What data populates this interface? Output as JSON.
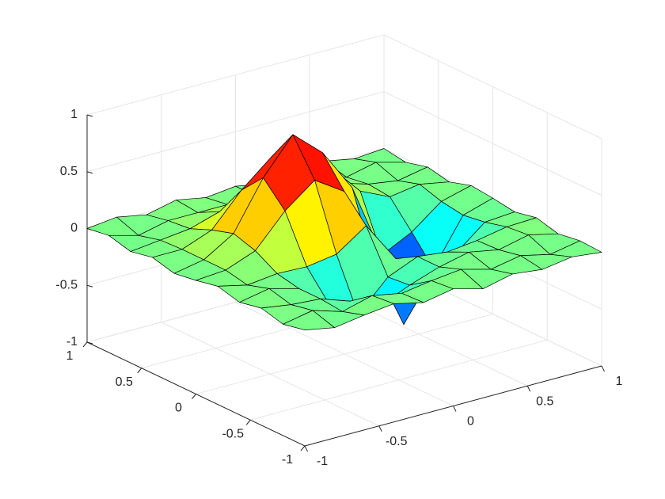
{
  "chart_data": {
    "type": "surface",
    "x": [
      -1,
      -0.8,
      -0.6,
      -0.4,
      -0.2,
      0,
      0.2,
      0.4,
      0.6,
      0.8,
      1
    ],
    "y": [
      -1,
      -0.8,
      -0.6,
      -0.4,
      -0.2,
      0,
      0.2,
      0.4,
      0.6,
      0.8,
      1
    ],
    "z": [
      [
        0.02,
        -0.03,
        0.01,
        0.04,
        -0.02,
        0.03,
        -0.04,
        0.02,
        -0.01,
        0.03,
        0.0
      ],
      [
        -0.02,
        0.03,
        -0.05,
        0.02,
        -0.03,
        0.01,
        0.04,
        -0.03,
        0.02,
        -0.04,
        0.01
      ],
      [
        0.03,
        -0.01,
        -0.03,
        -0.12,
        -0.23,
        -0.12,
        -0.03,
        0.03,
        -0.02,
        0.04,
        -0.02
      ],
      [
        -0.01,
        0.04,
        -0.03,
        -0.23,
        -0.4,
        -0.14,
        -0.03,
        -0.06,
        -0.03,
        0.02,
        0.03
      ],
      [
        0.04,
        -0.02,
        0.01,
        0.0,
        0.04,
        0.22,
        -0.14,
        -0.46,
        -0.24,
        -0.03,
        -0.01
      ],
      [
        0.0,
        0.02,
        0.12,
        0.4,
        0.6,
        0.43,
        -0.29,
        -0.88,
        -0.46,
        -0.06,
        0.02
      ],
      [
        -0.03,
        0.02,
        0.18,
        0.6,
        0.91,
        0.68,
        0.3,
        -0.36,
        -0.23,
        -0.03,
        0.04
      ],
      [
        0.02,
        0.02,
        0.12,
        0.4,
        0.62,
        0.55,
        0.39,
        0.11,
        -0.01,
        0.03,
        -0.02
      ],
      [
        -0.02,
        0.01,
        0.04,
        0.12,
        0.18,
        0.2,
        0.19,
        0.09,
        0.01,
        -0.03,
        0.02
      ],
      [
        0.03,
        -0.04,
        0.02,
        0.02,
        0.02,
        0.02,
        0.02,
        0.03,
        -0.02,
        0.04,
        -0.03
      ],
      [
        0.0,
        0.03,
        -0.02,
        0.04,
        -0.01,
        0.02,
        -0.03,
        0.01,
        0.03,
        -0.02,
        0.0
      ]
    ],
    "colormap": "jet",
    "edge_color": "#000000",
    "xlim": [
      -1,
      1
    ],
    "ylim": [
      -1,
      1
    ],
    "zlim": [
      -1,
      1
    ],
    "xticks": [
      -1,
      -0.5,
      0,
      0.5,
      1
    ],
    "yticks": [
      -1,
      -0.5,
      0,
      0.5,
      1
    ],
    "zticks": [
      -1,
      -0.5,
      0,
      0.5,
      1
    ],
    "grid": true
  }
}
